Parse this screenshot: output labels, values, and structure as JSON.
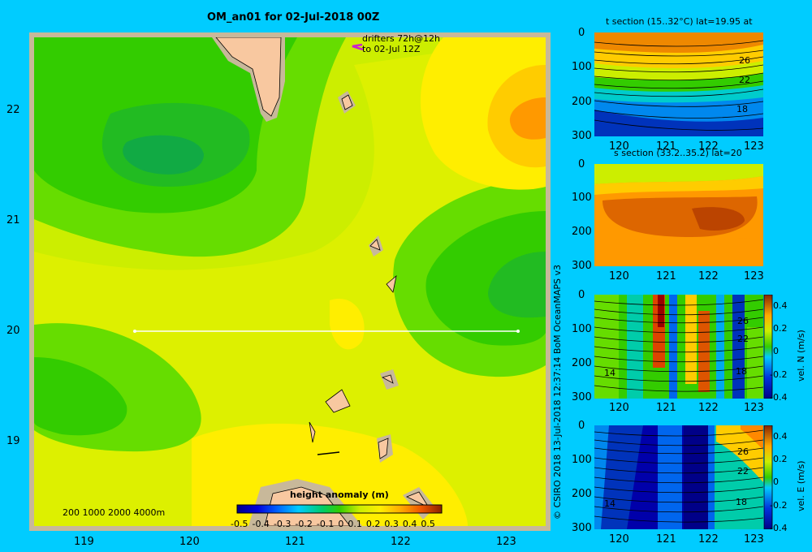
{
  "main_map": {
    "title": "OM_an01 for 02-Jul-2018 00Z",
    "drifter_note_line1": "drifters 72h@12h",
    "drifter_note_line2": "to 02-Jul 12Z",
    "x_ticks": [
      "119",
      "120",
      "121",
      "122",
      "123"
    ],
    "y_ticks": [
      "22",
      "21",
      "20",
      "19"
    ],
    "depth_legend": "200 1000 2000 4000m",
    "colorbar_title": "height anomaly (m)",
    "colorbar_ticks": [
      "-0.5",
      "-0.4",
      "-0.3",
      "-0.2",
      "-0.1",
      "0",
      "0.1",
      "0.2",
      "0.3",
      "0.4",
      "0.5"
    ]
  },
  "credit": "© CSIRO 2018   13-Jul-2018 12:37:14 BoM OceanMAPS v3",
  "panels": {
    "t_section": {
      "title": "t section (15..32°C) lat=19.95 at",
      "contour_labels": [
        "26",
        "22",
        "18"
      ]
    },
    "s_section": {
      "title": "s section (33.2..35.2) lat=20"
    },
    "vn_section": {
      "contour_labels": [
        "26",
        "22",
        "18",
        "14"
      ],
      "colorbar_label": "vel. N (m/s)",
      "colorbar_ticks": [
        "0.4",
        "0.2",
        "0",
        "-0.2",
        "-0.4"
      ]
    },
    "ve_section": {
      "contour_labels": [
        "26",
        "22",
        "18",
        "14"
      ],
      "colorbar_label": "vel. E (m/s)",
      "colorbar_ticks": [
        "0.4",
        "0.2",
        "0",
        "-0.2",
        "-0.4"
      ]
    },
    "x_ticks": [
      "120",
      "121",
      "122",
      "123"
    ],
    "y_ticks": [
      "0",
      "100",
      "200",
      "300"
    ]
  },
  "colors": {
    "background": "#00ccff",
    "frame": "#c8b89a",
    "land": "#f8c8a0"
  }
}
